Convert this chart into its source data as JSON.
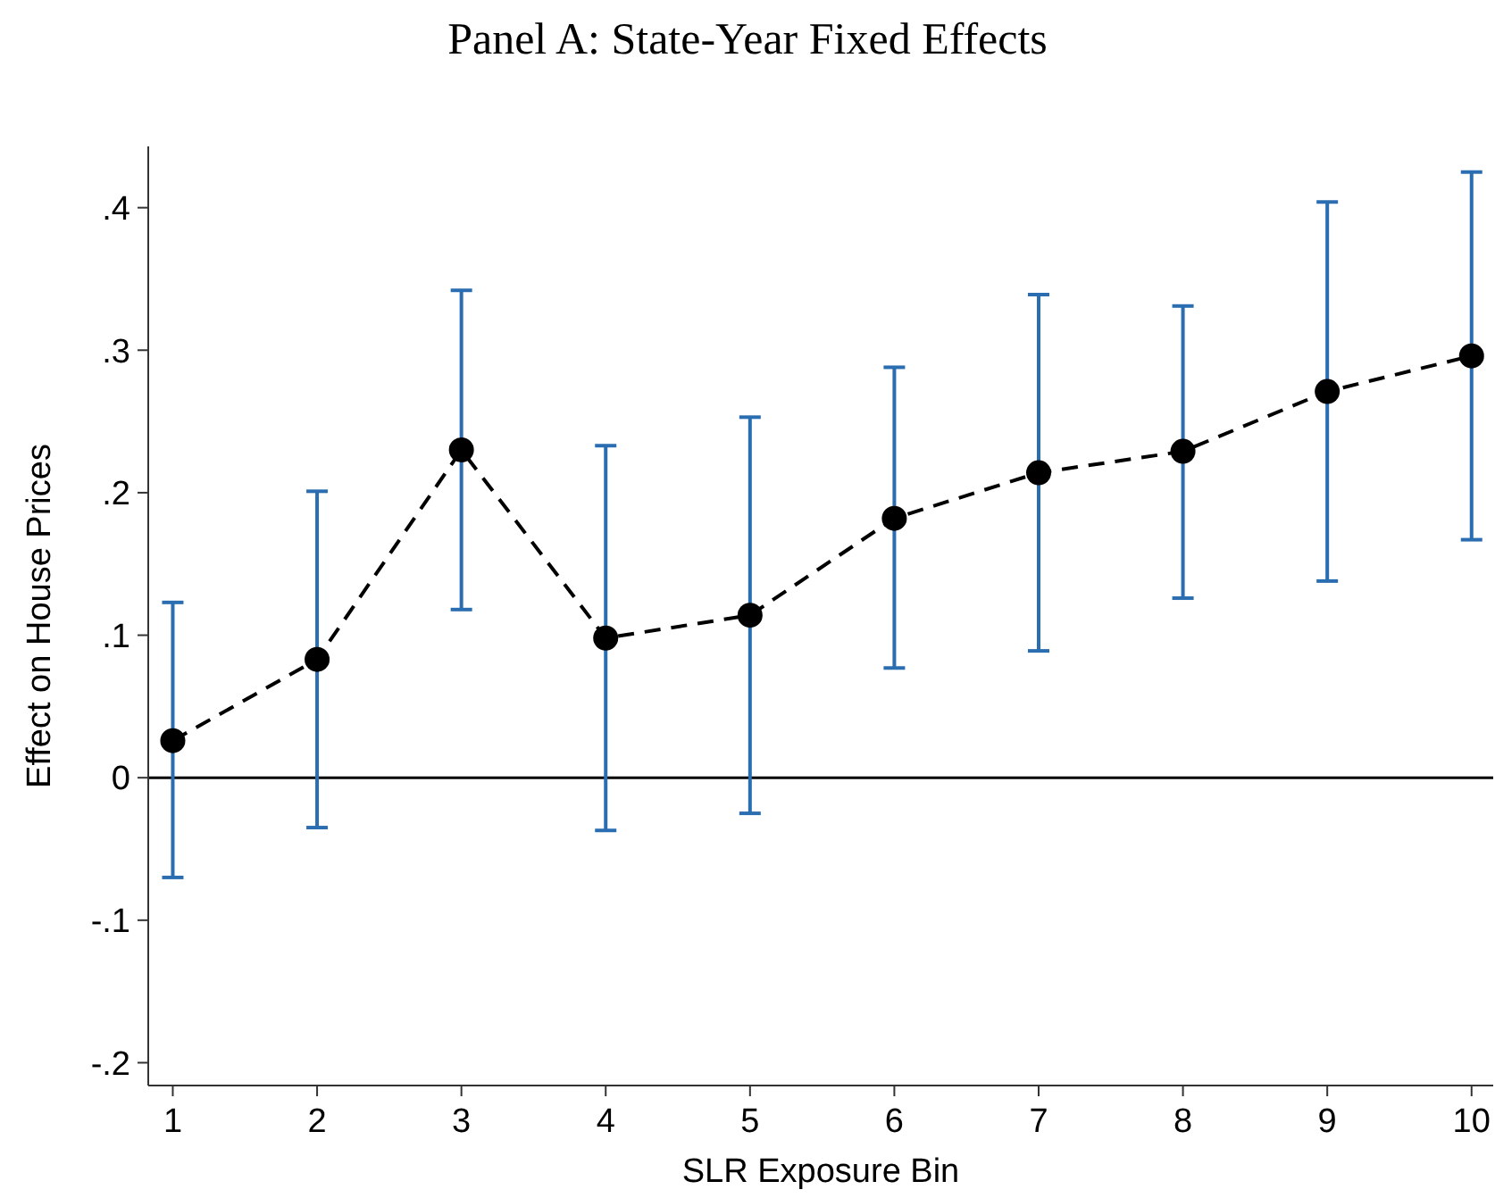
{
  "chart_data": {
    "type": "line",
    "title": "Panel A: State-Year Fixed Effects",
    "xlabel": "SLR Exposure Bin",
    "ylabel": "Effect on House Prices",
    "x": [
      1,
      2,
      3,
      4,
      5,
      6,
      7,
      8,
      9,
      10
    ],
    "series": [
      {
        "color": "#000000",
        "values": [
          0.026,
          0.083,
          0.23,
          0.098,
          0.114,
          0.182,
          0.214,
          0.229,
          0.271,
          0.296
        ],
        "errors": [
          [
            -0.07,
            0.123
          ],
          [
            -0.035,
            0.201
          ],
          [
            0.118,
            0.342
          ],
          [
            -0.037,
            0.233
          ],
          [
            -0.025,
            0.253
          ],
          [
            0.077,
            0.288
          ],
          [
            0.089,
            0.339
          ],
          [
            0.126,
            0.331
          ],
          [
            0.138,
            0.404
          ],
          [
            0.167,
            0.425
          ]
        ]
      }
    ],
    "xlim": [
      0.83,
      10.15
    ],
    "xticks": [
      1,
      2,
      3,
      4,
      5,
      6,
      7,
      8,
      9,
      10
    ],
    "ylim": [
      -0.216,
      0.443
    ],
    "yticks": [
      {
        "value": -0.2,
        "label": "-.2"
      },
      {
        "value": -0.1,
        "label": "-.1"
      },
      {
        "value": 0,
        "label": "0"
      },
      {
        "value": 0.1,
        "label": ".1"
      },
      {
        "value": 0.2,
        "label": ".2"
      },
      {
        "value": 0.3,
        "label": ".3"
      },
      {
        "value": 0.4,
        "label": ".4"
      }
    ],
    "ref_lines": [
      {
        "axis": "y",
        "value": 0,
        "color": "#000000"
      }
    ],
    "marker": "circle",
    "line_style": "dashed"
  }
}
